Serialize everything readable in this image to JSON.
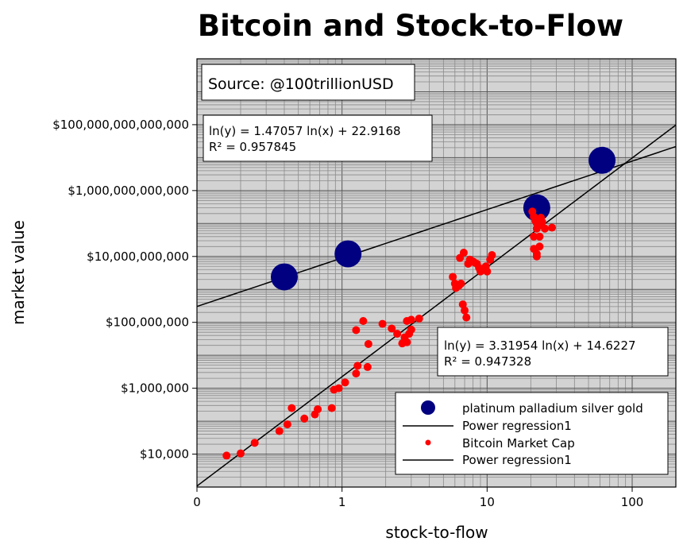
{
  "chart_data": {
    "type": "scatter",
    "title": "Bitcoin and Stock-to-Flow",
    "xlabel": "stock-to-flow",
    "ylabel": "market value",
    "x_scale": "log",
    "y_scale": "log",
    "xlim": [
      0.1,
      200
    ],
    "ylim": [
      1000,
      10000000000000000
    ],
    "x_ticks": [
      {
        "value": 0.1,
        "label": "0"
      },
      {
        "value": 1,
        "label": "1"
      },
      {
        "value": 10,
        "label": "10"
      },
      {
        "value": 100,
        "label": "100"
      }
    ],
    "y_ticks": [
      {
        "value": 10000,
        "label": "$10,000"
      },
      {
        "value": 1000000,
        "label": "$1,000,000"
      },
      {
        "value": 100000000,
        "label": "$100,000,000"
      },
      {
        "value": 10000000000,
        "label": "$10,000,000,000"
      },
      {
        "value": 1000000000000,
        "label": "$1,000,000,000,000"
      },
      {
        "value": 100000000000000,
        "label": "$100,000,000,000,000"
      }
    ],
    "grid": true,
    "source_note": "Source: @100trillionUSD",
    "annotations": [
      {
        "line1": "ln(y) = 1.47057 ln(x) + 22.9168",
        "line2": "R² = 0.957845"
      },
      {
        "line1": "ln(y) = 3.31954 ln(x) + 14.6227",
        "line2": "R² = 0.947328"
      }
    ],
    "legend": {
      "placement": "bottom-right",
      "entries": [
        {
          "label": "platinum palladium silver gold",
          "kind": "marker-large",
          "color": "#000080"
        },
        {
          "label": "Power regression1",
          "kind": "line",
          "color": "#000000"
        },
        {
          "label": "Bitcoin Market Cap",
          "kind": "marker-small",
          "color": "#ff0000"
        },
        {
          "label": "Power regression1",
          "kind": "line",
          "color": "#000000"
        }
      ]
    },
    "series": [
      {
        "name": "platinum palladium silver gold",
        "color": "#000080",
        "points": [
          {
            "x": 0.4,
            "y": 2400000000.0
          },
          {
            "x": 1.1,
            "y": 12000000000.0
          },
          {
            "x": 22,
            "y": 300000000000.0
          },
          {
            "x": 62,
            "y": 8300000000000.0
          }
        ]
      },
      {
        "name": "Bitcoin Market Cap",
        "color": "#ff0000",
        "points": [
          {
            "x": 0.16,
            "y": 9000
          },
          {
            "x": 0.2,
            "y": 10500
          },
          {
            "x": 0.25,
            "y": 22000
          },
          {
            "x": 0.37,
            "y": 50000
          },
          {
            "x": 0.42,
            "y": 80000
          },
          {
            "x": 0.45,
            "y": 250000
          },
          {
            "x": 0.55,
            "y": 120000
          },
          {
            "x": 0.65,
            "y": 160000
          },
          {
            "x": 0.68,
            "y": 230000
          },
          {
            "x": 0.85,
            "y": 250000
          },
          {
            "x": 0.88,
            "y": 900000
          },
          {
            "x": 0.95,
            "y": 1000000
          },
          {
            "x": 1.05,
            "y": 1500000
          },
          {
            "x": 1.25,
            "y": 2800000
          },
          {
            "x": 1.28,
            "y": 4800000
          },
          {
            "x": 1.5,
            "y": 4400000
          },
          {
            "x": 1.25,
            "y": 58000000
          },
          {
            "x": 1.4,
            "y": 110000000
          },
          {
            "x": 1.52,
            "y": 22000000
          },
          {
            "x": 1.9,
            "y": 90000000
          },
          {
            "x": 2.2,
            "y": 65000000
          },
          {
            "x": 2.4,
            "y": 45000000
          },
          {
            "x": 2.6,
            "y": 23000000
          },
          {
            "x": 2.7,
            "y": 35000000
          },
          {
            "x": 2.8,
            "y": 25000000
          },
          {
            "x": 2.8,
            "y": 110000000
          },
          {
            "x": 2.9,
            "y": 45000000
          },
          {
            "x": 3.0,
            "y": 60000000
          },
          {
            "x": 3.0,
            "y": 120000000
          },
          {
            "x": 3.4,
            "y": 130000000
          },
          {
            "x": 5.8,
            "y": 2400000000
          },
          {
            "x": 6.0,
            "y": 1500000000
          },
          {
            "x": 6.1,
            "y": 1100000000
          },
          {
            "x": 6.4,
            "y": 1300000000
          },
          {
            "x": 6.6,
            "y": 1500000000
          },
          {
            "x": 6.8,
            "y": 350000000
          },
          {
            "x": 7.0,
            "y": 230000000
          },
          {
            "x": 7.2,
            "y": 140000000
          },
          {
            "x": 6.5,
            "y": 9000000000
          },
          {
            "x": 6.9,
            "y": 13000000000
          },
          {
            "x": 7.4,
            "y": 6000000000
          },
          {
            "x": 7.6,
            "y": 8000000000
          },
          {
            "x": 7.8,
            "y": 7500000000
          },
          {
            "x": 8.0,
            "y": 7000000000
          },
          {
            "x": 8.2,
            "y": 6500000000
          },
          {
            "x": 8.5,
            "y": 6000000000
          },
          {
            "x": 8.8,
            "y": 4500000000
          },
          {
            "x": 9.0,
            "y": 3500000000
          },
          {
            "x": 9.3,
            "y": 4000000000
          },
          {
            "x": 9.8,
            "y": 5000000000
          },
          {
            "x": 10.0,
            "y": 3500000000
          },
          {
            "x": 10.5,
            "y": 8000000000
          },
          {
            "x": 10.8,
            "y": 11000000000
          },
          {
            "x": 20.5,
            "y": 230000000000
          },
          {
            "x": 21.0,
            "y": 160000000000
          },
          {
            "x": 21.5,
            "y": 120000000000
          },
          {
            "x": 22.0,
            "y": 100000000000
          },
          {
            "x": 22.5,
            "y": 130000000000
          },
          {
            "x": 23.0,
            "y": 90000000000
          },
          {
            "x": 23.5,
            "y": 150000000000
          },
          {
            "x": 24.0,
            "y": 110000000000
          },
          {
            "x": 25.0,
            "y": 70000000000
          },
          {
            "x": 21.0,
            "y": 40000000000
          },
          {
            "x": 22.0,
            "y": 70000000000
          },
          {
            "x": 23.0,
            "y": 40000000000
          },
          {
            "x": 28.0,
            "y": 75000000000
          },
          {
            "x": 21.0,
            "y": 17000000000
          },
          {
            "x": 22.0,
            "y": 10000000000
          },
          {
            "x": 23.0,
            "y": 20000000000
          },
          {
            "x": 22.0,
            "y": 12000000000
          }
        ]
      }
    ],
    "regressions": [
      {
        "series": "platinum palladium silver gold",
        "a": 1.47057,
        "b": 22.9168
      },
      {
        "series": "Bitcoin Market Cap",
        "a": 3.31954,
        "b": 14.6227
      }
    ]
  }
}
